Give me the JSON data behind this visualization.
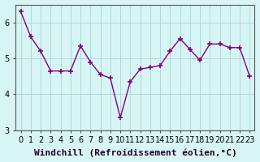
{
  "x": [
    0,
    1,
    2,
    3,
    4,
    5,
    6,
    7,
    8,
    9,
    10,
    11,
    12,
    13,
    14,
    15,
    16,
    17,
    18,
    19,
    20,
    21,
    22,
    23
  ],
  "y": [
    6.3,
    5.6,
    5.2,
    4.65,
    4.65,
    4.65,
    5.35,
    4.9,
    4.55,
    4.45,
    3.35,
    4.35,
    4.7,
    4.75,
    4.8,
    5.2,
    5.55,
    5.25,
    4.95,
    5.4,
    5.4,
    5.3,
    5.3,
    4.5
  ],
  "line_color": "#800080",
  "marker": "+",
  "marker_size": 5,
  "background_color": "#d8f5f5",
  "grid_color": "#b0d8d8",
  "xlabel": "Windchill (Refroidissement éolien,°C)",
  "xlabel_fontsize": 8,
  "ylabel": "",
  "ylim": [
    3.0,
    6.5
  ],
  "xlim": [
    -0.5,
    23.5
  ],
  "yticks": [
    3,
    4,
    5,
    6
  ],
  "xticks": [
    0,
    1,
    2,
    3,
    4,
    5,
    6,
    7,
    8,
    9,
    10,
    11,
    12,
    13,
    14,
    15,
    16,
    17,
    18,
    19,
    20,
    21,
    22,
    23
  ],
  "tick_fontsize": 7,
  "title": "",
  "spine_color": "#555555",
  "linewidth": 1.0
}
